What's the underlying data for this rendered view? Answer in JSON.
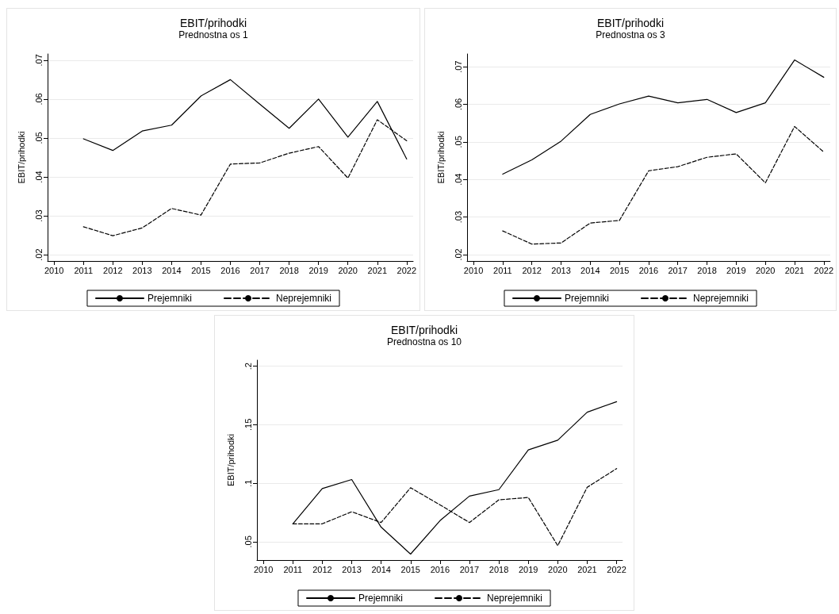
{
  "chart_data": [
    {
      "type": "line",
      "title": "EBIT/prihodki",
      "subtitle": "Prednostna os 1",
      "ylabel": "EBIT/prihodki",
      "x": [
        2011,
        2012,
        2013,
        2014,
        2015,
        2016,
        2017,
        2018,
        2019,
        2020,
        2021,
        2022
      ],
      "series": [
        {
          "name": "Prejemniki",
          "color": "#000000",
          "line_style": "solid",
          "values": [
            0.0498,
            0.0468,
            0.0518,
            0.0533,
            0.0608,
            0.065,
            0.0587,
            0.0525,
            0.06,
            0.0502,
            0.0594,
            0.0446
          ]
        },
        {
          "name": "Neprejemniki",
          "color": "#000000",
          "line_style": "dashed",
          "values": [
            0.0272,
            0.0249,
            0.0269,
            0.0319,
            0.0302,
            0.0433,
            0.0436,
            0.0461,
            0.0478,
            0.0397,
            0.0547,
            0.0493
          ]
        }
      ],
      "xlim": [
        2009.78,
        2022.22
      ],
      "xticks": [
        2010,
        2011,
        2012,
        2013,
        2014,
        2015,
        2016,
        2017,
        2018,
        2019,
        2020,
        2021,
        2022
      ],
      "ylim": [
        0.0184,
        0.0716
      ],
      "yticks": [
        {
          "value": 0.02,
          "label": ".02"
        },
        {
          "value": 0.03,
          "label": ".03"
        },
        {
          "value": 0.04,
          "label": ".04"
        },
        {
          "value": 0.05,
          "label": ".05"
        },
        {
          "value": 0.06,
          "label": ".06"
        },
        {
          "value": 0.07,
          "label": ".07"
        }
      ],
      "grid": "y",
      "legend": "bottom",
      "marker": "none"
    },
    {
      "type": "line",
      "title": "EBIT/prihodki",
      "subtitle": "Prednostna os 3",
      "ylabel": "EBIT/prihodki",
      "x": [
        2011,
        2012,
        2013,
        2014,
        2015,
        2016,
        2017,
        2018,
        2019,
        2020,
        2021,
        2022
      ],
      "series": [
        {
          "name": "Prejemniki",
          "color": "#000000",
          "line_style": "solid",
          "values": [
            0.0414,
            0.0452,
            0.0502,
            0.0573,
            0.0601,
            0.0622,
            0.0604,
            0.0613,
            0.0578,
            0.0604,
            0.0718,
            0.0672
          ]
        },
        {
          "name": "Neprejemniki",
          "color": "#000000",
          "line_style": "dashed",
          "values": [
            0.0263,
            0.0228,
            0.0231,
            0.0284,
            0.0291,
            0.0423,
            0.0434,
            0.0459,
            0.0468,
            0.0391,
            0.0541,
            0.0473
          ]
        }
      ],
      "xlim": [
        2009.78,
        2022.22
      ],
      "xticks": [
        2010,
        2011,
        2012,
        2013,
        2014,
        2015,
        2016,
        2017,
        2018,
        2019,
        2020,
        2021,
        2022
      ],
      "ylim": [
        0.0183,
        0.0734
      ],
      "yticks": [
        {
          "value": 0.02,
          "label": ".02"
        },
        {
          "value": 0.03,
          "label": ".03"
        },
        {
          "value": 0.04,
          "label": ".04"
        },
        {
          "value": 0.05,
          "label": ".05"
        },
        {
          "value": 0.06,
          "label": ".06"
        },
        {
          "value": 0.07,
          "label": ".07"
        }
      ],
      "grid": "y",
      "legend": "bottom",
      "marker": "none"
    },
    {
      "type": "line",
      "title": "EBIT/prihodki",
      "subtitle": "Prednostna os 10",
      "ylabel": "EBIT/prihodki",
      "x": [
        2011,
        2012,
        2013,
        2014,
        2015,
        2016,
        2017,
        2018,
        2019,
        2020,
        2021,
        2022
      ],
      "series": [
        {
          "name": "Prejemniki",
          "color": "#000000",
          "line_style": "solid",
          "values": [
            0.0653,
            0.0954,
            0.1031,
            0.0624,
            0.0394,
            0.068,
            0.089,
            0.0945,
            0.1285,
            0.1368,
            0.1607,
            0.1697
          ]
        },
        {
          "name": "Neprejemniki",
          "color": "#000000",
          "line_style": "dashed",
          "values": [
            0.0653,
            0.0653,
            0.0756,
            0.0664,
            0.0961,
            0.0815,
            0.0664,
            0.0858,
            0.0878,
            0.0466,
            0.0965,
            0.1125
          ]
        }
      ],
      "xlim": [
        2009.78,
        2022.2
      ],
      "xticks": [
        2010,
        2011,
        2012,
        2013,
        2014,
        2015,
        2016,
        2017,
        2018,
        2019,
        2020,
        2021,
        2022
      ],
      "ylim": [
        0.0343,
        0.2052
      ],
      "yticks": [
        {
          "value": 0.05,
          "label": ".05"
        },
        {
          "value": 0.1,
          "label": ".1"
        },
        {
          "value": 0.15,
          "label": ".15"
        },
        {
          "value": 0.2,
          "label": ".2"
        }
      ],
      "grid": "y",
      "legend": "bottom",
      "marker": "none"
    }
  ]
}
